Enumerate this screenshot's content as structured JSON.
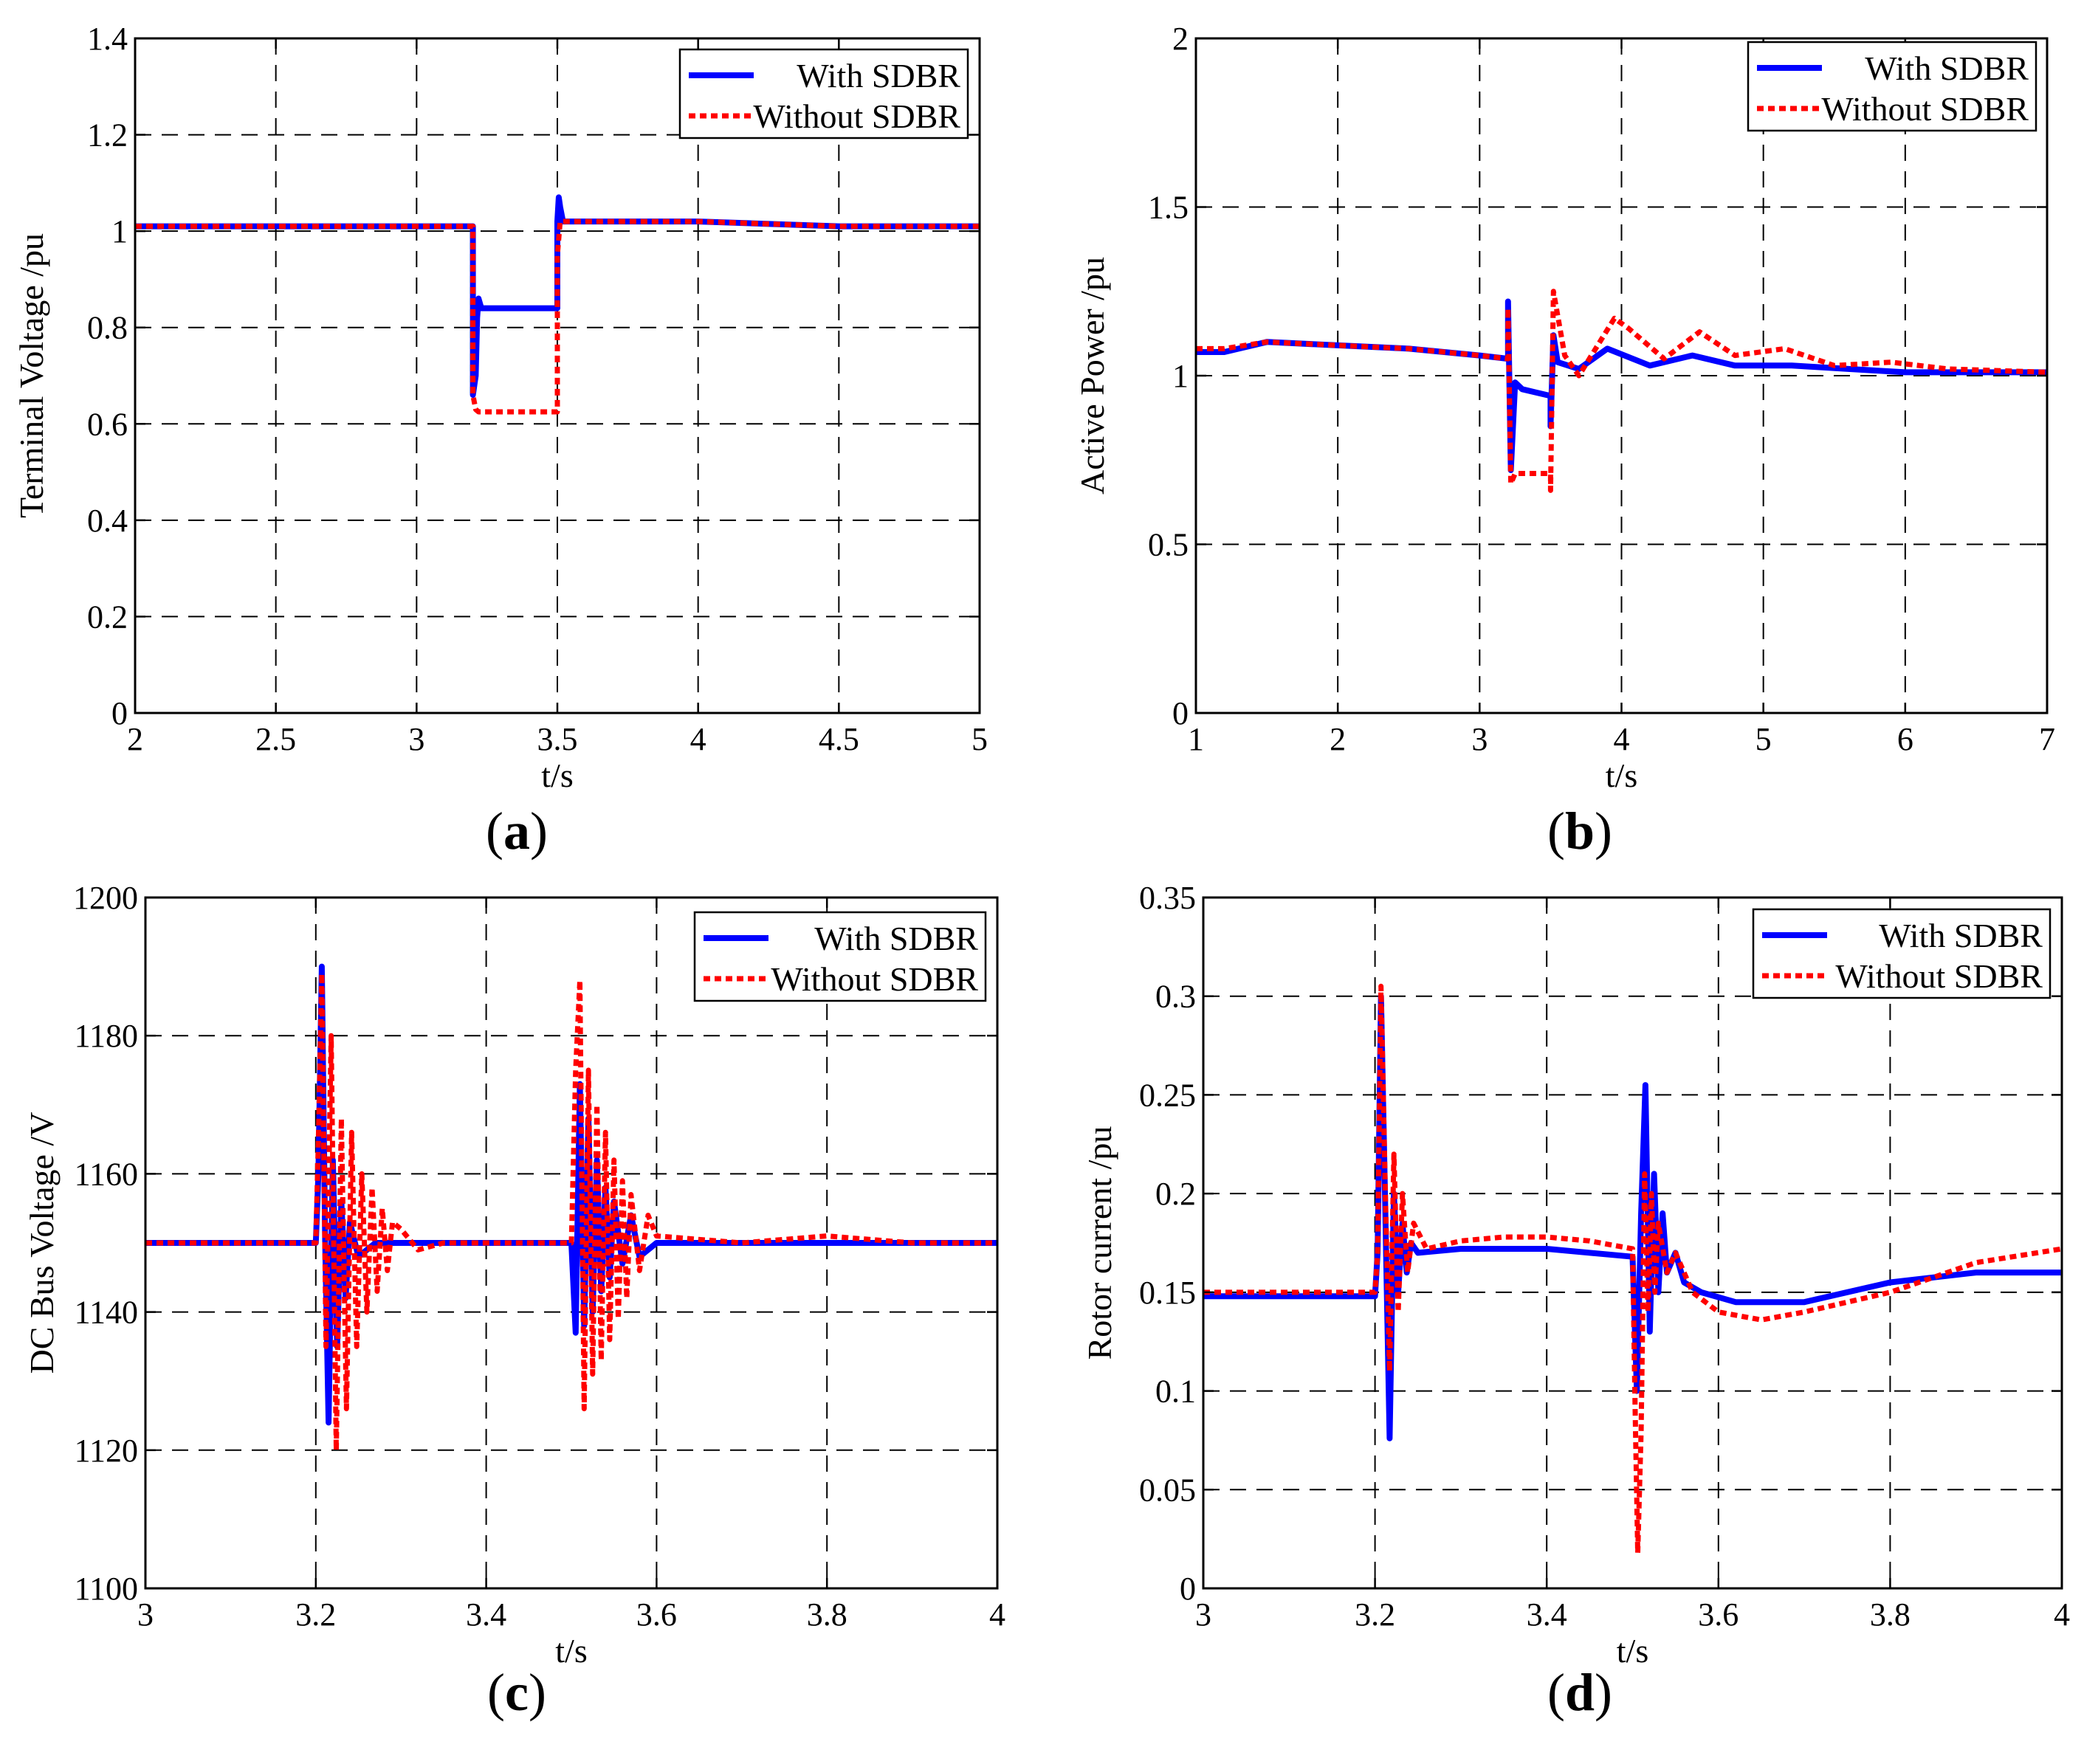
{
  "colors": {
    "with": "#0000ff",
    "without": "#ff0000"
  },
  "legend": {
    "with_label": "With SDBR",
    "without_label": "Without SDBR"
  },
  "chart_data": [
    {
      "id": "a",
      "type": "line",
      "panel_label": "a",
      "xlabel": "t/s",
      "ylabel": "Terminal Voltage /pu",
      "xlim": [
        2,
        5
      ],
      "ylim": [
        0,
        1.4
      ],
      "xticks": [
        2,
        2.5,
        3,
        3.5,
        4,
        4.5,
        5
      ],
      "xtick_labels": [
        "2",
        "2.5",
        "3",
        "3.5",
        "4",
        "4.5",
        "5"
      ],
      "yticks": [
        0,
        0.2,
        0.4,
        0.6,
        0.8,
        1,
        1.2,
        1.4
      ],
      "ytick_labels": [
        "0",
        "0.2",
        "0.4",
        "0.6",
        "0.8",
        "1",
        "1.2",
        "1.4"
      ],
      "series": [
        {
          "name": "With SDBR",
          "style": "solid",
          "x": [
            2,
            3.2,
            3.2,
            3.21,
            3.215,
            3.22,
            3.23,
            3.24,
            3.3,
            3.4,
            3.5,
            3.5,
            3.505,
            3.51,
            3.52,
            3.55,
            4,
            4.5,
            5
          ],
          "y": [
            1.01,
            1.01,
            0.66,
            0.7,
            0.82,
            0.86,
            0.84,
            0.84,
            0.84,
            0.84,
            0.84,
            1.02,
            1.07,
            1.05,
            1.02,
            1.02,
            1.02,
            1.01,
            1.01
          ]
        },
        {
          "name": "Without SDBR",
          "style": "dotted",
          "x": [
            2,
            3.2,
            3.2,
            3.21,
            3.22,
            3.3,
            3.4,
            3.5,
            3.5,
            3.51,
            3.52,
            4,
            4.5,
            5
          ],
          "y": [
            1.01,
            1.01,
            0.66,
            0.63,
            0.625,
            0.625,
            0.625,
            0.625,
            0.95,
            1.02,
            1.02,
            1.02,
            1.01,
            1.01
          ]
        }
      ]
    },
    {
      "id": "b",
      "type": "line",
      "panel_label": "b",
      "xlabel": "t/s",
      "ylabel": "Active Power /pu",
      "xlim": [
        1,
        7
      ],
      "ylim": [
        0,
        2
      ],
      "xticks": [
        1,
        2,
        3,
        4,
        5,
        6,
        7
      ],
      "xtick_labels": [
        "1",
        "2",
        "3",
        "4",
        "5",
        "6",
        "7"
      ],
      "yticks": [
        0,
        0.5,
        1,
        1.5,
        2
      ],
      "ytick_labels": [
        "0",
        "0.5",
        "1",
        "1.5",
        "2"
      ],
      "series": [
        {
          "name": "With SDBR",
          "style": "solid",
          "x": [
            1,
            1.2,
            1.5,
            2,
            2.5,
            3,
            3.2,
            3.2,
            3.22,
            3.25,
            3.3,
            3.4,
            3.5,
            3.5,
            3.52,
            3.55,
            3.7,
            3.9,
            4.2,
            4.5,
            4.8,
            5.2,
            5.6,
            6,
            6.5,
            7
          ],
          "y": [
            1.07,
            1.07,
            1.1,
            1.09,
            1.08,
            1.06,
            1.05,
            1.22,
            0.72,
            0.98,
            0.96,
            0.95,
            0.94,
            0.85,
            1.12,
            1.04,
            1.02,
            1.08,
            1.03,
            1.06,
            1.03,
            1.03,
            1.02,
            1.01,
            1.01,
            1.01
          ]
        },
        {
          "name": "Without SDBR",
          "style": "dotted",
          "x": [
            1,
            1.2,
            1.5,
            2,
            2.5,
            3,
            3.2,
            3.2,
            3.22,
            3.25,
            3.4,
            3.5,
            3.5,
            3.52,
            3.6,
            3.7,
            3.95,
            4.05,
            4.3,
            4.55,
            4.8,
            5.15,
            5.5,
            5.9,
            6.3,
            7
          ],
          "y": [
            1.08,
            1.08,
            1.1,
            1.09,
            1.08,
            1.06,
            1.05,
            1.2,
            0.68,
            0.71,
            0.71,
            0.71,
            0.66,
            1.25,
            1.06,
            1.0,
            1.17,
            1.14,
            1.05,
            1.13,
            1.06,
            1.08,
            1.03,
            1.04,
            1.02,
            1.01
          ]
        }
      ]
    },
    {
      "id": "c",
      "type": "line",
      "panel_label": "c",
      "xlabel": "t/s",
      "ylabel": "DC Bus Voltage  /V",
      "xlim": [
        3,
        4
      ],
      "ylim": [
        1100,
        1200
      ],
      "xticks": [
        3,
        3.2,
        3.4,
        3.6,
        3.8,
        4
      ],
      "xtick_labels": [
        "3",
        "3.2",
        "3.4",
        "3.6",
        "3.8",
        "4"
      ],
      "yticks": [
        1100,
        1120,
        1140,
        1160,
        1180,
        1200
      ],
      "ytick_labels": [
        "1100",
        "1120",
        "1140",
        "1160",
        "1180",
        "1200"
      ],
      "series": [
        {
          "name": "With SDBR",
          "style": "solid",
          "x": [
            3,
            3.05,
            3.1,
            3.15,
            3.2,
            3.203,
            3.207,
            3.211,
            3.215,
            3.22,
            3.225,
            3.23,
            3.235,
            3.24,
            3.25,
            3.27,
            3.3,
            3.4,
            3.5,
            3.505,
            3.51,
            3.515,
            3.52,
            3.525,
            3.53,
            3.535,
            3.54,
            3.545,
            3.55,
            3.56,
            3.57,
            3.58,
            3.6,
            3.7,
            3.8,
            3.9,
            4
          ],
          "y": [
            1150,
            1150,
            1150,
            1150,
            1150,
            1160,
            1190,
            1150,
            1124,
            1162,
            1135,
            1156,
            1142,
            1153,
            1148,
            1150,
            1150,
            1150,
            1150,
            1137,
            1173,
            1138,
            1168,
            1140,
            1162,
            1143,
            1158,
            1145,
            1156,
            1147,
            1154,
            1148,
            1150,
            1150,
            1150,
            1150,
            1150
          ]
        },
        {
          "name": "Without SDBR",
          "style": "dotted",
          "x": [
            3,
            3.05,
            3.1,
            3.15,
            3.2,
            3.203,
            3.207,
            3.212,
            3.218,
            3.224,
            3.23,
            3.236,
            3.242,
            3.248,
            3.254,
            3.26,
            3.266,
            3.272,
            3.278,
            3.284,
            3.29,
            3.3,
            3.32,
            3.35,
            3.4,
            3.5,
            3.505,
            3.51,
            3.515,
            3.52,
            3.525,
            3.53,
            3.535,
            3.54,
            3.545,
            3.55,
            3.555,
            3.56,
            3.565,
            3.57,
            3.58,
            3.59,
            3.6,
            3.7,
            3.8,
            3.9,
            4
          ],
          "y": [
            1150,
            1150,
            1150,
            1150,
            1150,
            1165,
            1189,
            1135,
            1180,
            1120,
            1168,
            1126,
            1166,
            1135,
            1160,
            1140,
            1158,
            1143,
            1155,
            1146,
            1153,
            1152,
            1149,
            1150,
            1150,
            1150,
            1175,
            1188,
            1126,
            1175,
            1131,
            1170,
            1133,
            1166,
            1136,
            1162,
            1139,
            1159,
            1142,
            1157,
            1146,
            1154,
            1151,
            1150,
            1151,
            1150,
            1150
          ]
        }
      ]
    },
    {
      "id": "d",
      "type": "line",
      "panel_label": "d",
      "xlabel": "t/s",
      "ylabel": "Rotor current /pu",
      "xlim": [
        3,
        4
      ],
      "ylim": [
        0,
        0.35
      ],
      "xticks": [
        3,
        3.2,
        3.4,
        3.6,
        3.8,
        4
      ],
      "xtick_labels": [
        "3",
        "3.2",
        "3.4",
        "3.6",
        "3.8",
        "4"
      ],
      "yticks": [
        0,
        0.05,
        0.1,
        0.15,
        0.2,
        0.25,
        0.3,
        0.35
      ],
      "ytick_labels": [
        "0",
        "0.05",
        "0.1",
        "0.15",
        "0.2",
        "0.25",
        "0.3",
        "0.35"
      ],
      "series": [
        {
          "name": "With SDBR",
          "style": "solid",
          "x": [
            3,
            3.1,
            3.2,
            3.203,
            3.207,
            3.212,
            3.217,
            3.222,
            3.227,
            3.232,
            3.237,
            3.242,
            3.25,
            3.3,
            3.4,
            3.5,
            3.505,
            3.51,
            3.515,
            3.52,
            3.525,
            3.53,
            3.535,
            3.54,
            3.55,
            3.56,
            3.58,
            3.62,
            3.7,
            3.8,
            3.9,
            4
          ],
          "y": [
            0.148,
            0.148,
            0.148,
            0.17,
            0.3,
            0.19,
            0.076,
            0.2,
            0.15,
            0.185,
            0.16,
            0.175,
            0.17,
            0.172,
            0.172,
            0.168,
            0.1,
            0.19,
            0.255,
            0.13,
            0.21,
            0.15,
            0.19,
            0.16,
            0.17,
            0.155,
            0.15,
            0.145,
            0.145,
            0.155,
            0.16,
            0.16
          ]
        },
        {
          "name": "Without SDBR",
          "style": "dotted",
          "x": [
            3,
            3.1,
            3.2,
            3.203,
            3.207,
            3.212,
            3.217,
            3.222,
            3.227,
            3.232,
            3.238,
            3.245,
            3.26,
            3.3,
            3.35,
            3.4,
            3.45,
            3.5,
            3.503,
            3.506,
            3.51,
            3.514,
            3.518,
            3.522,
            3.526,
            3.53,
            3.54,
            3.55,
            3.57,
            3.6,
            3.65,
            3.7,
            3.8,
            3.9,
            4
          ],
          "y": [
            0.15,
            0.15,
            0.15,
            0.17,
            0.305,
            0.2,
            0.11,
            0.22,
            0.14,
            0.2,
            0.16,
            0.185,
            0.172,
            0.176,
            0.178,
            0.178,
            0.176,
            0.172,
            0.09,
            0.018,
            0.08,
            0.21,
            0.14,
            0.2,
            0.15,
            0.185,
            0.16,
            0.17,
            0.15,
            0.14,
            0.136,
            0.14,
            0.15,
            0.165,
            0.172
          ]
        }
      ]
    }
  ]
}
